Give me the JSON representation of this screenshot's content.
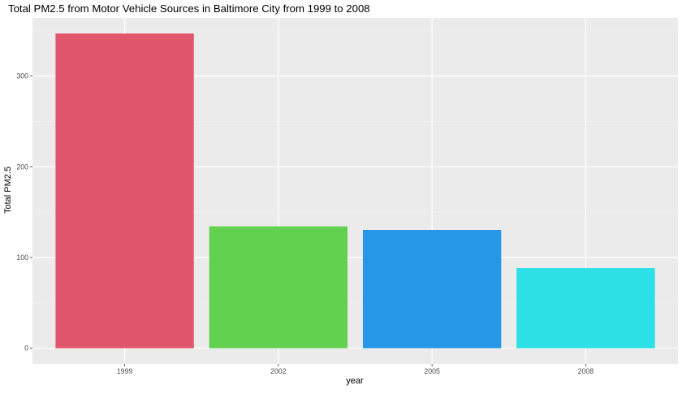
{
  "chart_data": {
    "type": "bar",
    "title": "Total PM2.5 from Motor Vehicle Sources in Baltimore City from 1999 to 2008",
    "xlabel": "year",
    "ylabel": "Total PM2.5",
    "categories": [
      "1999",
      "2002",
      "2005",
      "2008"
    ],
    "values": [
      346.8,
      134.3,
      130.4,
      88.3
    ],
    "bar_colors": [
      "#E0566D",
      "#62D150",
      "#2597E6",
      "#2CE0E6"
    ],
    "ylim": [
      -17.3,
      364.1
    ],
    "yticks": [
      0,
      100,
      200,
      300
    ],
    "ytick_labels": [
      "0",
      "100",
      "200",
      "300"
    ],
    "grid": true,
    "legend": "none",
    "colors": {
      "panel_background": "#EBEBEB",
      "grid_major": "#FFFFFF",
      "grid_minor": "#F2F2F2",
      "text": "#000000",
      "tick_text": "#4D4D4D",
      "tick_mark": "#333333"
    }
  }
}
